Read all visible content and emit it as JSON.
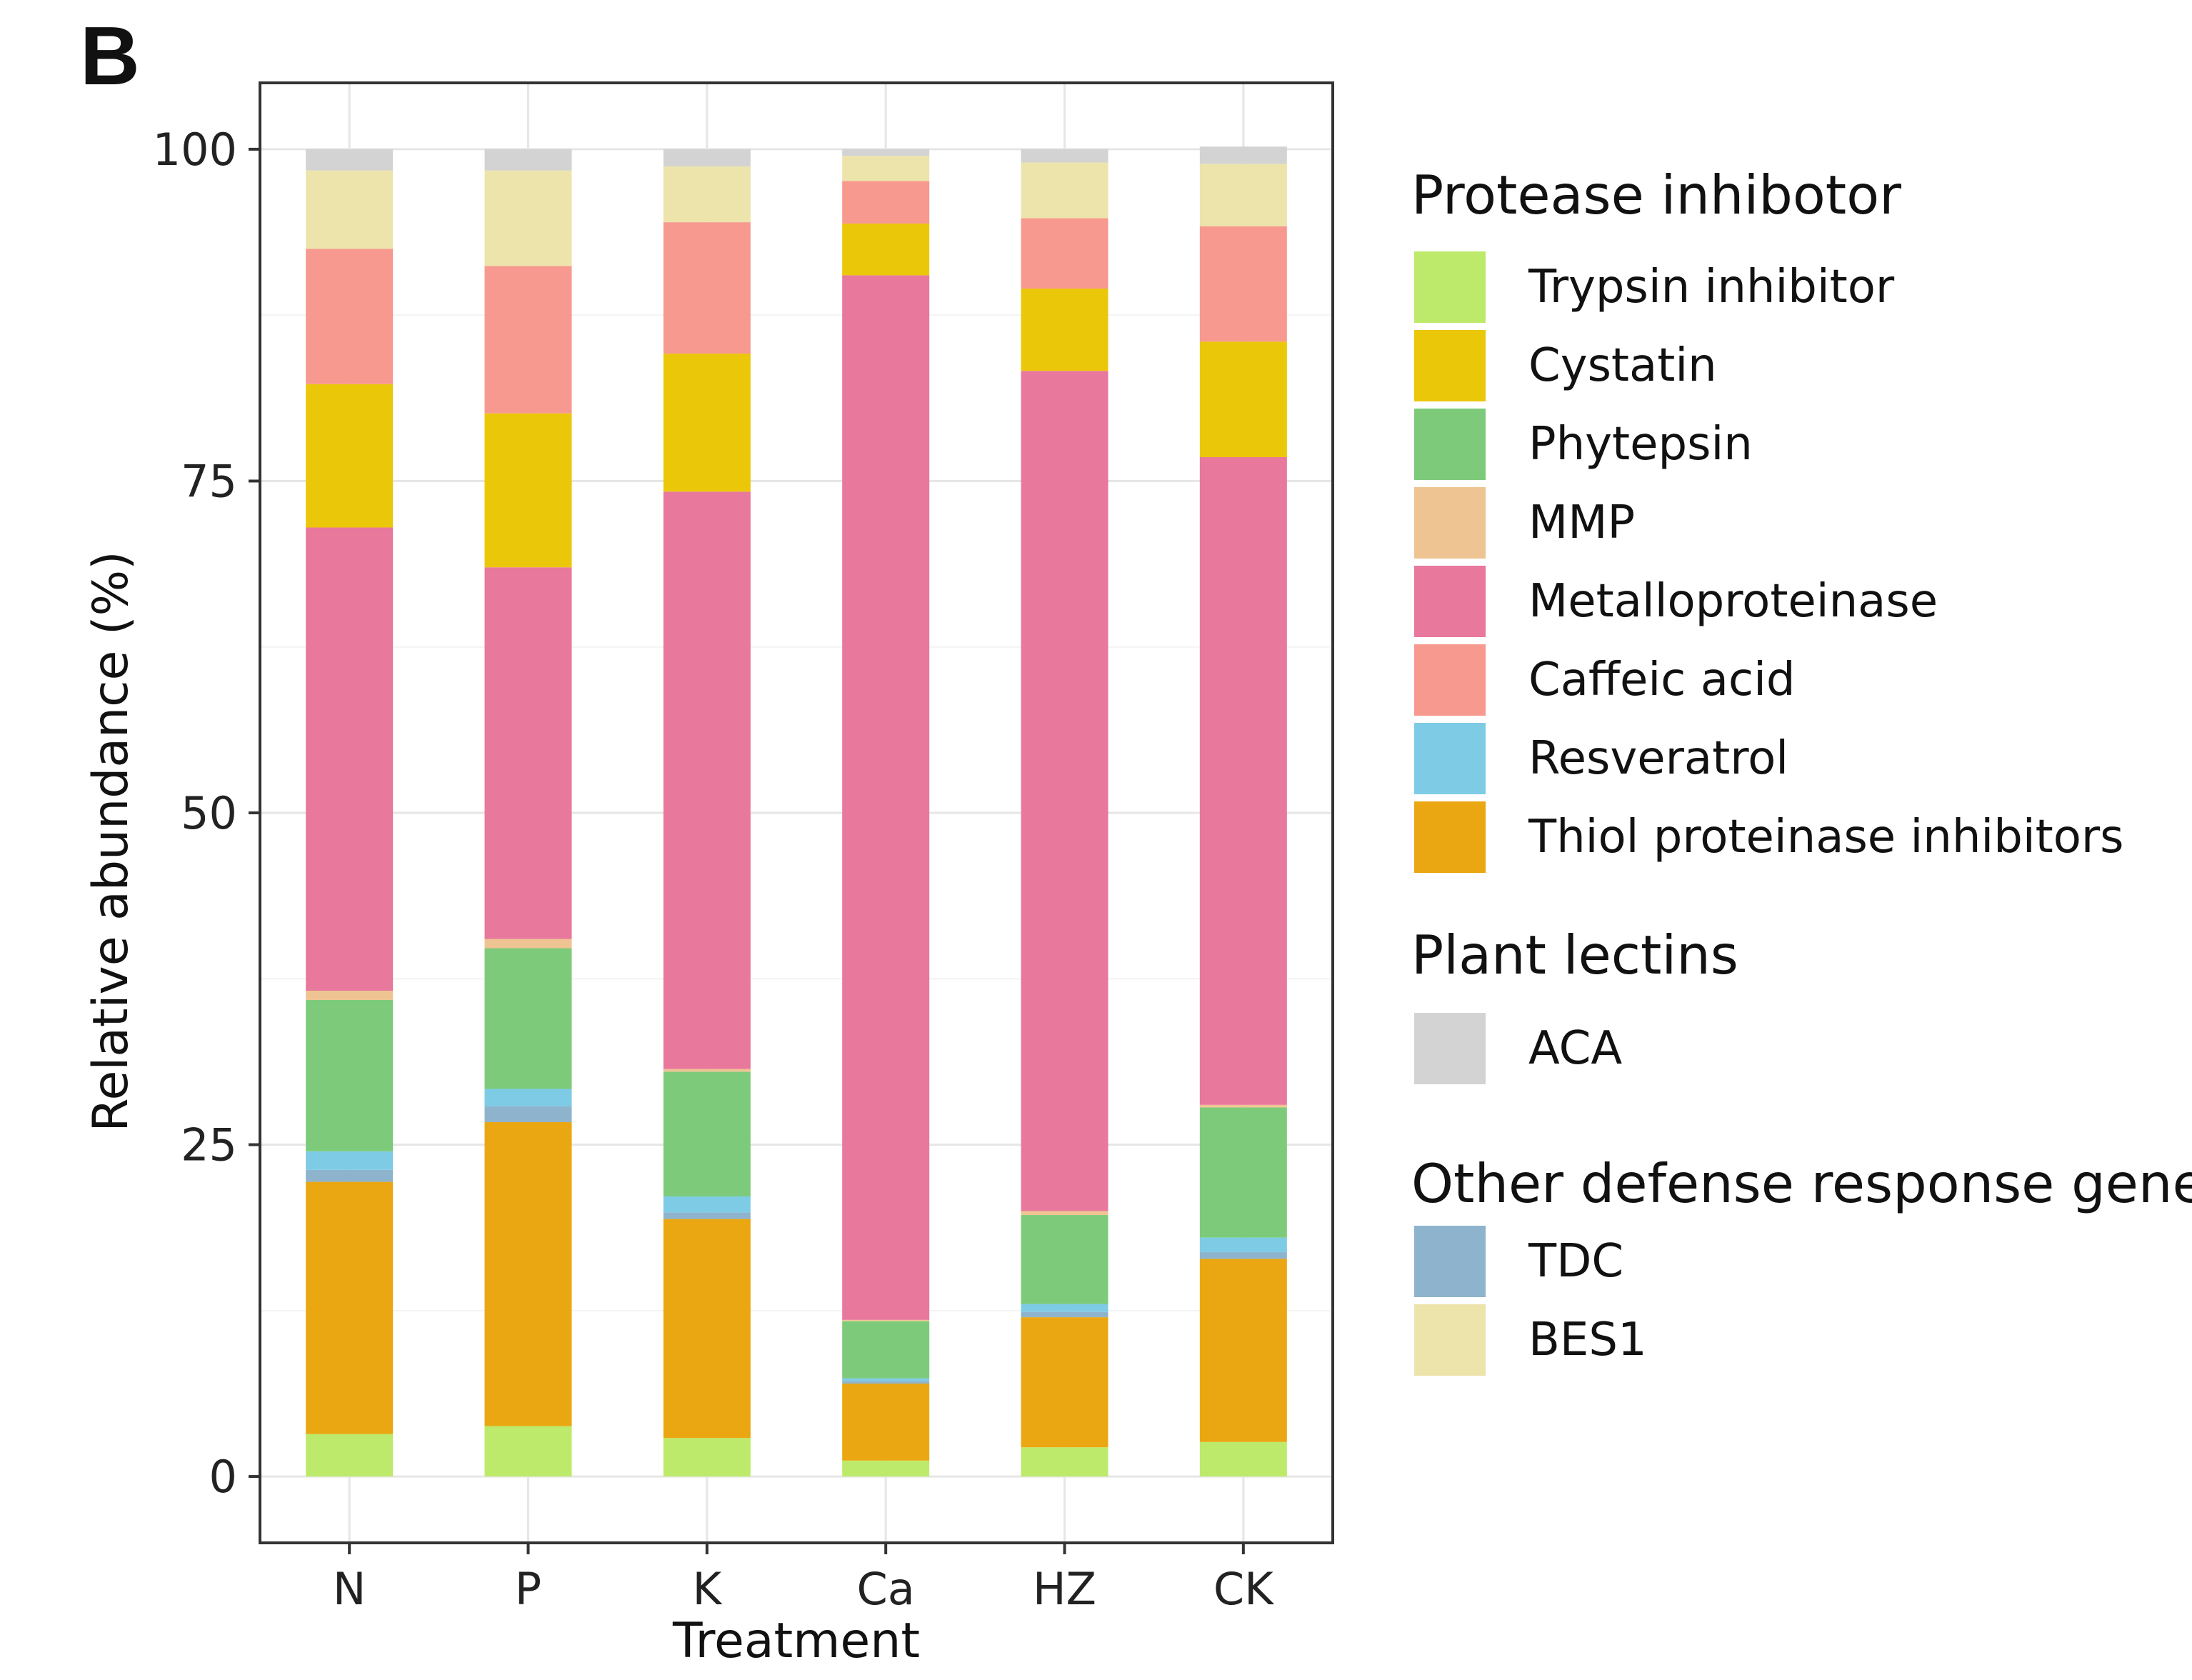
{
  "panel_label": "B",
  "chart_data": {
    "type": "bar",
    "stacked": true,
    "title": "",
    "xlabel": "Treatment",
    "ylabel": "Relative abundance (%)",
    "ylim": [
      -5,
      105
    ],
    "yticks": [
      0,
      25,
      50,
      75,
      100
    ],
    "grid": true,
    "legend_position": "right",
    "categories": [
      "N",
      "P",
      "K",
      "Ca",
      "HZ",
      "CK"
    ],
    "series": [
      {
        "name": "Trypsin inhibitor",
        "color": "#BDEA6A",
        "values": [
          3.2,
          3.8,
          2.9,
          1.2,
          2.2,
          2.6
        ]
      },
      {
        "name": "Thiol proteinase inhibitors",
        "color": "#EAA712",
        "values": [
          19.0,
          22.9,
          16.5,
          5.8,
          9.8,
          13.8
        ]
      },
      {
        "name": "TDC",
        "color": "#8DB4CC",
        "values": [
          0.9,
          1.2,
          0.5,
          0.2,
          0.4,
          0.5
        ]
      },
      {
        "name": "Resveratrol",
        "color": "#7ECBE6",
        "values": [
          1.4,
          1.3,
          1.2,
          0.2,
          0.6,
          1.1
        ]
      },
      {
        "name": "Phytepsin",
        "color": "#7DCB7A",
        "values": [
          11.4,
          10.6,
          9.4,
          4.3,
          6.7,
          9.8
        ]
      },
      {
        "name": "MMP",
        "color": "#EFC493",
        "values": [
          0.7,
          0.7,
          0.2,
          0.1,
          0.3,
          0.2
        ]
      },
      {
        "name": "Metalloproteinase",
        "color": "#E8789C",
        "values": [
          34.9,
          28.0,
          43.5,
          78.7,
          63.3,
          48.8
        ]
      },
      {
        "name": "Cystatin",
        "color": "#EBC70A",
        "values": [
          10.8,
          11.6,
          10.4,
          3.9,
          6.2,
          8.7
        ]
      },
      {
        "name": "Caffeic acid",
        "color": "#F7998F",
        "values": [
          10.2,
          11.1,
          9.9,
          3.2,
          5.3,
          8.7
        ]
      },
      {
        "name": "BES1",
        "color": "#EDE4AB",
        "values": [
          5.9,
          7.2,
          4.2,
          1.9,
          4.2,
          4.7
        ]
      },
      {
        "name": "ACA",
        "color": "#D3D3D3",
        "values": [
          1.6,
          1.6,
          1.3,
          0.5,
          1.0,
          1.3
        ]
      }
    ],
    "legend_groups": [
      {
        "title": "Protease inhibotor",
        "items": [
          "Trypsin inhibitor",
          "Cystatin",
          "Phytepsin",
          "MMP",
          "Metalloproteinase",
          "Caffeic acid",
          "Resveratrol",
          "Thiol proteinase inhibitors"
        ]
      },
      {
        "title": "Plant lectins",
        "items": [
          "ACA"
        ]
      },
      {
        "title": "Other defense response genes",
        "items": [
          "TDC",
          "BES1"
        ]
      }
    ]
  }
}
